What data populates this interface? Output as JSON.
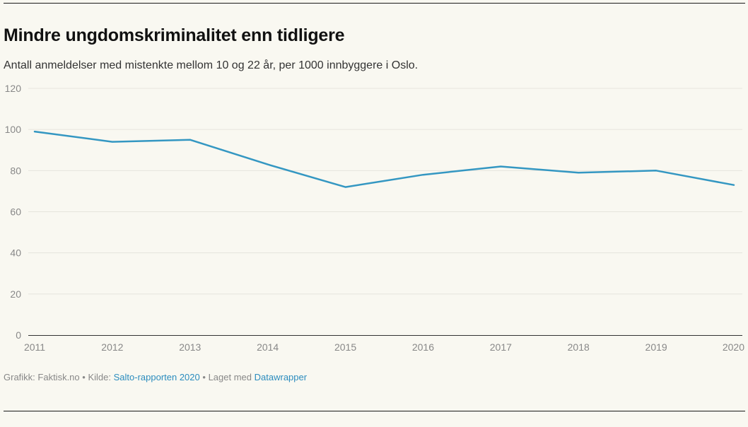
{
  "header": {
    "title": "Mindre ungdomskriminalitet enn tidligere",
    "subtitle": "Antall anmeldelser med mistenkte mellom 10 og 22 år, per 1000 innbyggere i Oslo."
  },
  "footer": {
    "graphic_label": "Grafikk: Faktisk.no",
    "separator": "•",
    "source_prefix": "Kilde:",
    "source_link": "Salto-rapporten 2020",
    "made_with_prefix": "Laget med",
    "made_with_link": "Datawrapper"
  },
  "colors": {
    "line": "#3497c2",
    "grid": "#e6e5dd",
    "axis": "#333333",
    "tick_text": "#888888",
    "background": "#f9f8f1"
  },
  "chart_data": {
    "type": "line",
    "title": "Mindre ungdomskriminalitet enn tidligere",
    "subtitle": "Antall anmeldelser med mistenkte mellom 10 og 22 år, per 1000 innbyggere i Oslo.",
    "xlabel": "",
    "ylabel": "",
    "x": [
      2011,
      2012,
      2013,
      2014,
      2015,
      2016,
      2017,
      2018,
      2019,
      2020
    ],
    "series": [
      {
        "values": [
          99,
          94,
          95,
          83,
          72,
          78,
          82,
          79,
          80,
          73
        ]
      }
    ],
    "ylim": [
      0,
      120
    ],
    "yticks": [
      0,
      20,
      40,
      60,
      80,
      100,
      120
    ],
    "xticks": [
      "2011",
      "2012",
      "2013",
      "2014",
      "2015",
      "2016",
      "2017",
      "2018",
      "2019",
      "2020"
    ],
    "grid": true,
    "legend": "none"
  }
}
